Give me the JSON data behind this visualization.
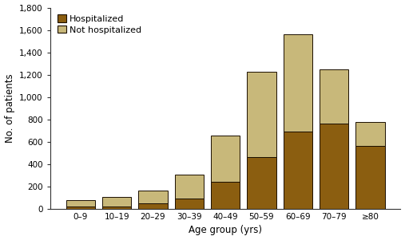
{
  "categories": [
    "0–9",
    "10–19",
    "20–29",
    "30–39",
    "40–49",
    "50–59",
    "60–69",
    "70–79",
    "≥80"
  ],
  "hospitalized": [
    22,
    25,
    50,
    90,
    240,
    465,
    695,
    760,
    565
  ],
  "not_hospitalized": [
    58,
    80,
    115,
    215,
    415,
    765,
    865,
    490,
    215
  ],
  "hosp_color": "#8B5E10",
  "not_hosp_color": "#C8B87A",
  "bar_edge_color": "#1a0e00",
  "xlabel": "Age group (yrs)",
  "ylabel": "No. of patients",
  "ylim": [
    0,
    1800
  ],
  "yticks": [
    0,
    200,
    400,
    600,
    800,
    1000,
    1200,
    1400,
    1600,
    1800
  ],
  "ytick_labels": [
    "0",
    "200",
    "400",
    "600",
    "800",
    "1,000",
    "1,200",
    "1,400",
    "1,600",
    "1,800"
  ],
  "legend_hosp": "Hospitalized",
  "legend_not_hosp": "Not hospitalized",
  "background_color": "#ffffff"
}
